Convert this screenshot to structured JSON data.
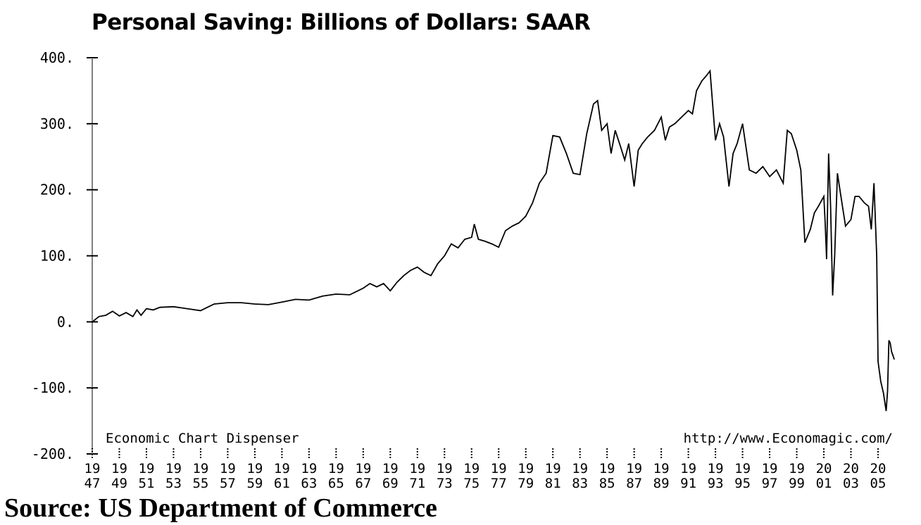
{
  "chart_data": {
    "type": "line",
    "title": "Personal Saving: Billions of Dollars: SAAR",
    "xlabel": "",
    "ylabel": "",
    "xlim": [
      1947,
      2006.3
    ],
    "ylim": [
      -200,
      400
    ],
    "y_ticks": [
      {
        "value": 400,
        "label": "400."
      },
      {
        "value": 300,
        "label": "300."
      },
      {
        "value": 200,
        "label": "200."
      },
      {
        "value": 100,
        "label": "100."
      },
      {
        "value": 0,
        "label": "0."
      },
      {
        "value": -100,
        "label": "-100."
      },
      {
        "value": -200,
        "label": "-200."
      }
    ],
    "x_ticks": [
      {
        "value": 1947,
        "top": "19",
        "bottom": "47"
      },
      {
        "value": 1949,
        "top": "19",
        "bottom": "49"
      },
      {
        "value": 1951,
        "top": "19",
        "bottom": "51"
      },
      {
        "value": 1953,
        "top": "19",
        "bottom": "53"
      },
      {
        "value": 1955,
        "top": "19",
        "bottom": "55"
      },
      {
        "value": 1957,
        "top": "19",
        "bottom": "57"
      },
      {
        "value": 1959,
        "top": "19",
        "bottom": "59"
      },
      {
        "value": 1961,
        "top": "19",
        "bottom": "61"
      },
      {
        "value": 1963,
        "top": "19",
        "bottom": "63"
      },
      {
        "value": 1965,
        "top": "19",
        "bottom": "65"
      },
      {
        "value": 1967,
        "top": "19",
        "bottom": "67"
      },
      {
        "value": 1969,
        "top": "19",
        "bottom": "69"
      },
      {
        "value": 1971,
        "top": "19",
        "bottom": "71"
      },
      {
        "value": 1973,
        "top": "19",
        "bottom": "73"
      },
      {
        "value": 1975,
        "top": "19",
        "bottom": "75"
      },
      {
        "value": 1977,
        "top": "19",
        "bottom": "77"
      },
      {
        "value": 1979,
        "top": "19",
        "bottom": "79"
      },
      {
        "value": 1981,
        "top": "19",
        "bottom": "81"
      },
      {
        "value": 1983,
        "top": "19",
        "bottom": "83"
      },
      {
        "value": 1985,
        "top": "19",
        "bottom": "85"
      },
      {
        "value": 1987,
        "top": "19",
        "bottom": "87"
      },
      {
        "value": 1989,
        "top": "19",
        "bottom": "89"
      },
      {
        "value": 1991,
        "top": "19",
        "bottom": "91"
      },
      {
        "value": 1993,
        "top": "19",
        "bottom": "93"
      },
      {
        "value": 1995,
        "top": "19",
        "bottom": "95"
      },
      {
        "value": 1997,
        "top": "19",
        "bottom": "97"
      },
      {
        "value": 1999,
        "top": "19",
        "bottom": "99"
      },
      {
        "value": 2001,
        "top": "20",
        "bottom": "01"
      },
      {
        "value": 2003,
        "top": "20",
        "bottom": "03"
      },
      {
        "value": 2005,
        "top": "20",
        "bottom": "05"
      }
    ],
    "series": [
      {
        "color": "#000000",
        "x": [
          1947.0,
          1947.5,
          1948.0,
          1948.5,
          1949.0,
          1949.5,
          1950.0,
          1950.3,
          1950.6,
          1951.0,
          1951.5,
          1952.0,
          1953.0,
          1954.0,
          1955.0,
          1955.5,
          1956.0,
          1957.0,
          1958.0,
          1959.0,
          1960.0,
          1961.0,
          1962.0,
          1963.0,
          1964.0,
          1965.0,
          1966.0,
          1967.0,
          1967.5,
          1968.0,
          1968.5,
          1969.0,
          1969.5,
          1970.0,
          1970.5,
          1971.0,
          1971.5,
          1972.0,
          1972.5,
          1973.0,
          1973.5,
          1974.0,
          1974.5,
          1975.0,
          1975.2,
          1975.5,
          1976.0,
          1976.5,
          1977.0,
          1977.5,
          1978.0,
          1978.5,
          1979.0,
          1979.5,
          1980.0,
          1980.5,
          1981.0,
          1981.5,
          1982.0,
          1982.5,
          1983.0,
          1983.5,
          1984.0,
          1984.3,
          1984.6,
          1985.0,
          1985.3,
          1985.6,
          1986.0,
          1986.3,
          1986.6,
          1987.0,
          1987.3,
          1987.6,
          1988.0,
          1988.5,
          1989.0,
          1989.3,
          1989.6,
          1990.0,
          1990.5,
          1991.0,
          1991.3,
          1991.6,
          1992.0,
          1992.3,
          1992.6,
          1993.0,
          1993.3,
          1993.6,
          1994.0,
          1994.3,
          1994.6,
          1995.0,
          1995.5,
          1996.0,
          1996.5,
          1997.0,
          1997.5,
          1998.0,
          1998.3,
          1998.6,
          1999.0,
          1999.3,
          1999.6,
          2000.0,
          2000.3,
          2000.6,
          2001.0,
          2001.1,
          2001.2,
          2001.35,
          2001.5,
          2001.65,
          2001.8,
          2002.0,
          2002.3,
          2002.6,
          2003.0,
          2003.3,
          2003.6,
          2004.0,
          2004.3,
          2004.5,
          2004.7,
          2004.9,
          2005.0,
          2005.2,
          2005.4,
          2005.6,
          2005.7,
          2005.8,
          2005.9,
          2006.0,
          2006.2
        ],
        "y": [
          0,
          8,
          10,
          16,
          9,
          14,
          8,
          18,
          10,
          20,
          18,
          22,
          23,
          20,
          17,
          22,
          27,
          29,
          29,
          27,
          26,
          30,
          34,
          33,
          39,
          42,
          41,
          51,
          58,
          53,
          58,
          47,
          60,
          70,
          78,
          83,
          75,
          70,
          88,
          100,
          118,
          112,
          125,
          128,
          148,
          125,
          122,
          118,
          113,
          138,
          145,
          150,
          160,
          180,
          210,
          225,
          282,
          280,
          255,
          225,
          223,
          285,
          330,
          335,
          290,
          300,
          255,
          290,
          265,
          245,
          270,
          205,
          260,
          270,
          280,
          290,
          310,
          275,
          295,
          300,
          310,
          320,
          315,
          350,
          365,
          372,
          380,
          275,
          300,
          280,
          205,
          255,
          270,
          300,
          230,
          225,
          235,
          220,
          230,
          210,
          290,
          285,
          260,
          230,
          120,
          140,
          165,
          175,
          190,
          150,
          95,
          255,
          175,
          40,
          100,
          225,
          185,
          145,
          155,
          190,
          190,
          180,
          175,
          140,
          210,
          100,
          -60,
          -90,
          -108,
          -135,
          -105,
          -28,
          -32,
          -45,
          -57
        ]
      }
    ],
    "grid": false
  },
  "annotations": {
    "left_label": "Economic Chart Dispenser",
    "right_label": "http://www.Economagic.com/"
  },
  "source_caption": "Source: US Department of Commerce"
}
